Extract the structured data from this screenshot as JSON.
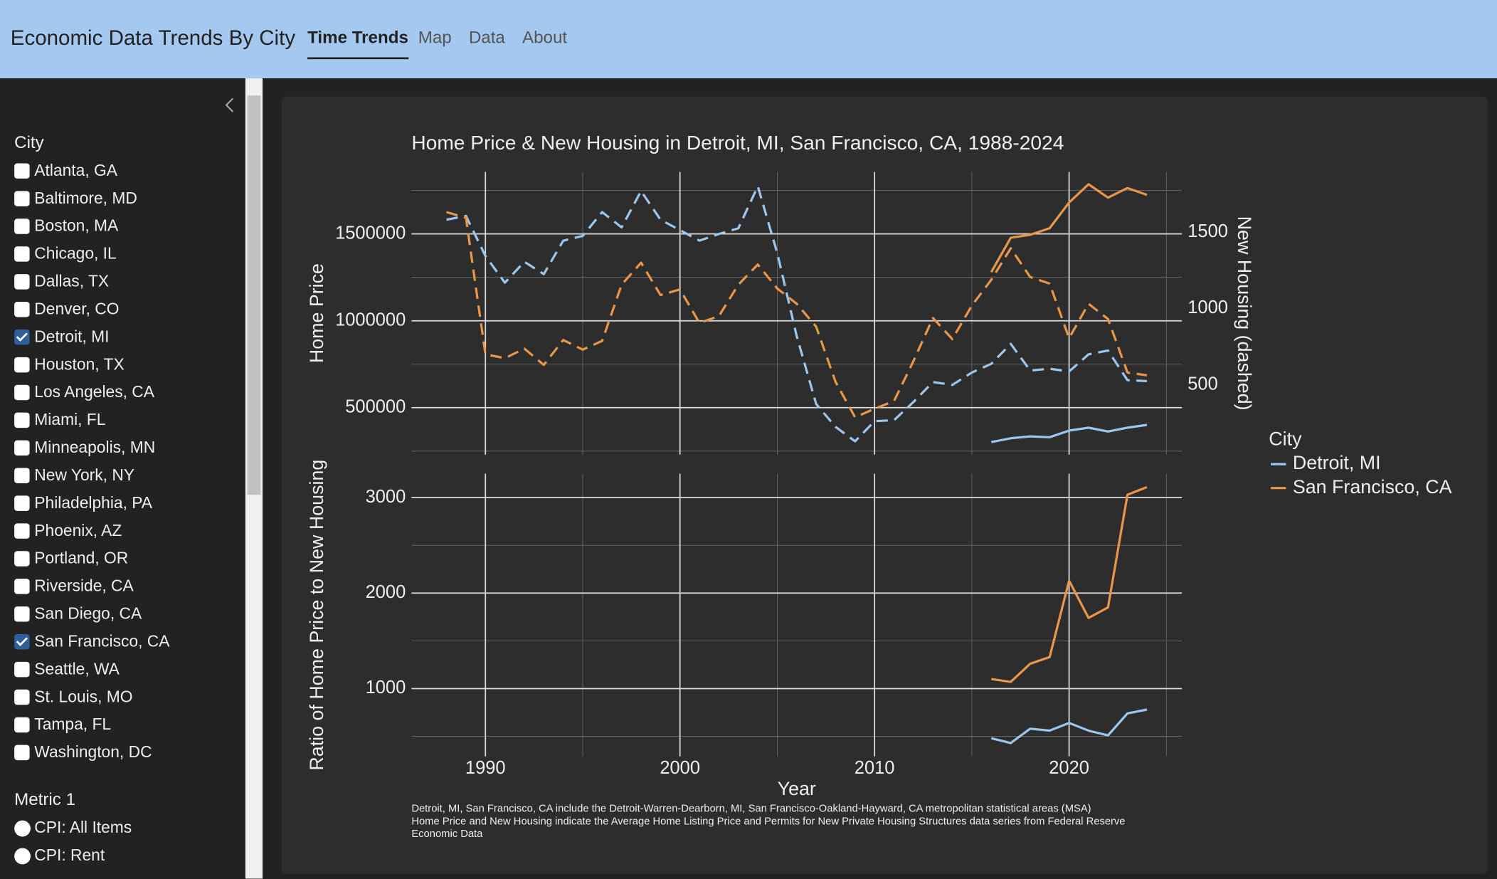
{
  "header": {
    "title": "Economic Data Trends By City",
    "nav": [
      "Time Trends",
      "Map",
      "Data",
      "About"
    ],
    "active_nav": 0
  },
  "sidebar": {
    "city_label": "City",
    "cities": [
      {
        "name": "Atlanta, GA",
        "checked": false
      },
      {
        "name": "Baltimore, MD",
        "checked": false
      },
      {
        "name": "Boston, MA",
        "checked": false
      },
      {
        "name": "Chicago, IL",
        "checked": false
      },
      {
        "name": "Dallas, TX",
        "checked": false
      },
      {
        "name": "Denver, CO",
        "checked": false
      },
      {
        "name": "Detroit, MI",
        "checked": true
      },
      {
        "name": "Houston, TX",
        "checked": false
      },
      {
        "name": "Los Angeles, CA",
        "checked": false
      },
      {
        "name": "Miami, FL",
        "checked": false
      },
      {
        "name": "Minneapolis, MN",
        "checked": false
      },
      {
        "name": "New York, NY",
        "checked": false
      },
      {
        "name": "Philadelphia, PA",
        "checked": false
      },
      {
        "name": "Phoenix, AZ",
        "checked": false
      },
      {
        "name": "Portland, OR",
        "checked": false
      },
      {
        "name": "Riverside, CA",
        "checked": false
      },
      {
        "name": "San Diego, CA",
        "checked": false
      },
      {
        "name": "San Francisco, CA",
        "checked": true
      },
      {
        "name": "Seattle, WA",
        "checked": false
      },
      {
        "name": "St. Louis, MO",
        "checked": false
      },
      {
        "name": "Tampa, FL",
        "checked": false
      },
      {
        "name": "Washington, DC",
        "checked": false
      }
    ],
    "metric_label": "Metric 1",
    "metrics": [
      "CPI: All Items",
      "CPI: Rent"
    ]
  },
  "chart_data": [
    {
      "type": "line",
      "title": "Home Price & New Housing in Detroit, MI, San Francisco, CA, 1988-2024",
      "y_label": "Home Price",
      "y2_label": "New Housing (dashed)",
      "x": [
        1988,
        1989,
        1990,
        1991,
        1992,
        1993,
        1994,
        1995,
        1996,
        1997,
        1998,
        1999,
        2000,
        2001,
        2002,
        2003,
        2004,
        2005,
        2006,
        2007,
        2008,
        2009,
        2010,
        2011,
        2012,
        2013,
        2014,
        2015,
        2016,
        2017,
        2018,
        2019,
        2020,
        2021,
        2022,
        2023,
        2024
      ],
      "xlim": [
        1986.2,
        2025.8
      ],
      "xticks": [
        1990,
        2000,
        2010,
        2020
      ],
      "xminor": [
        1995,
        2005,
        2015,
        2025
      ],
      "ylim": [
        230000,
        1857000
      ],
      "yticks": [
        500000,
        1000000,
        1500000
      ],
      "yminor": [
        250000,
        750000,
        1250000,
        1750000
      ],
      "y2lim": [
        44,
        1894
      ],
      "y2ticks": [
        500,
        1000,
        1500
      ],
      "grid": true,
      "legend": {
        "title": "City",
        "position": "right"
      },
      "series": [
        {
          "name": "Detroit, MI",
          "color": "#9dc6ec",
          "values": [
            null,
            null,
            null,
            null,
            null,
            null,
            null,
            null,
            null,
            null,
            null,
            null,
            null,
            null,
            null,
            null,
            null,
            null,
            null,
            null,
            null,
            null,
            null,
            null,
            null,
            null,
            null,
            null,
            302000,
            324000,
            335000,
            330000,
            368000,
            385000,
            363000,
            385000,
            401000
          ]
        },
        {
          "name": "San Francisco, CA",
          "color": "#e8974a",
          "values": [
            null,
            null,
            null,
            null,
            null,
            null,
            null,
            null,
            null,
            null,
            null,
            null,
            null,
            null,
            null,
            null,
            null,
            null,
            null,
            null,
            null,
            null,
            null,
            null,
            null,
            null,
            null,
            null,
            1280000,
            1478000,
            1495000,
            1533000,
            1681000,
            1786000,
            1709000,
            1764000,
            1725000
          ]
        },
        {
          "color": "#9dc6ec",
          "axis": "y2",
          "dashed": true,
          "values": [
            1581,
            1606,
            1344,
            1169,
            1306,
            1225,
            1444,
            1475,
            1631,
            1531,
            1769,
            1581,
            1513,
            1444,
            1488,
            1525,
            1800,
            1363,
            819,
            375,
            225,
            131,
            263,
            269,
            388,
            519,
            500,
            581,
            638,
            769,
            594,
            606,
            588,
            700,
            725,
            531,
            525
          ]
        },
        {
          "color": "#e8974a",
          "axis": "y2",
          "dashed": true,
          "values": [
            1631,
            1594,
            700,
            675,
            738,
            631,
            794,
            731,
            788,
            1156,
            1300,
            1088,
            1125,
            906,
            950,
            1156,
            1288,
            1131,
            1031,
            881,
            519,
            288,
            344,
            394,
            656,
            938,
            800,
            1019,
            1188,
            1394,
            1206,
            1163,
            806,
            1031,
            931,
            581,
            563
          ]
        }
      ]
    },
    {
      "type": "line",
      "y_label": "Ratio of Home Price to New Housing",
      "x_label": "Year",
      "x": [
        2016,
        2017,
        2018,
        2019,
        2020,
        2021,
        2022,
        2023,
        2024
      ],
      "xlim": [
        1986.2,
        2025.8
      ],
      "xticks": [
        1990,
        2000,
        2010,
        2020
      ],
      "xminor": [
        1995,
        2005,
        2015,
        2025
      ],
      "ylim": [
        290,
        3250
      ],
      "yticks": [
        1000,
        2000,
        3000
      ],
      "yminor": [
        500,
        1500,
        2500
      ],
      "grid": true,
      "series": [
        {
          "color": "#9dc6ec",
          "values": [
            480,
            430,
            580,
            560,
            640,
            560,
            510,
            740,
            780
          ]
        },
        {
          "color": "#e8974a",
          "values": [
            1100,
            1070,
            1260,
            1330,
            2130,
            1740,
            1850,
            3030,
            3110
          ]
        }
      ],
      "caption": [
        "Detroit, MI, San Francisco, CA include the Detroit-Warren-Dearborn, MI, San Francisco-Oakland-Hayward, CA metropolitan statistical areas (MSA)",
        "Home Price and New Housing indicate the Average Home Listing Price and Permits for New Private Housing Structures data series from Federal Reserve",
        "Economic Data"
      ]
    }
  ]
}
